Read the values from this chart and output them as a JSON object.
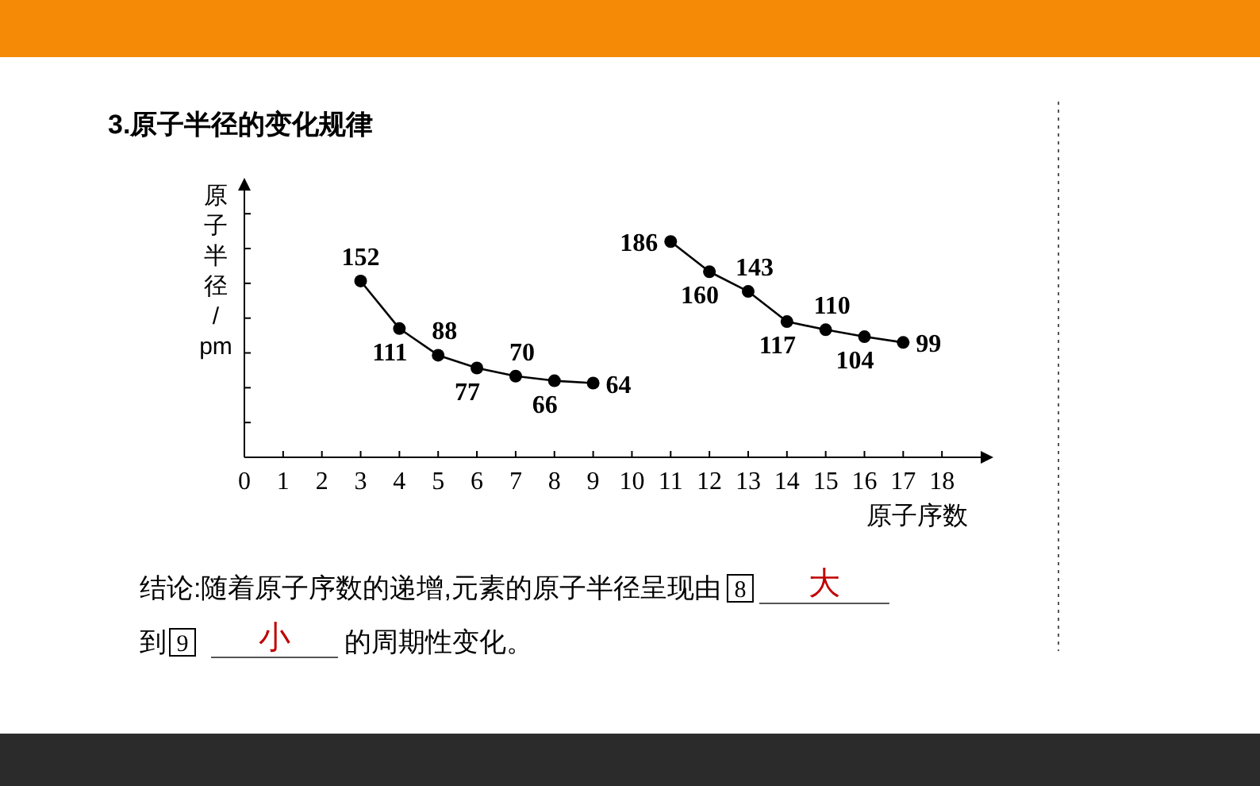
{
  "chart_data": {
    "type": "line",
    "title": "3.原子半径的变化规律",
    "ylabel": "原子半径/pm",
    "xlabel": "原子序数",
    "xlim": [
      0,
      19
    ],
    "xticks": [
      0,
      1,
      2,
      3,
      4,
      5,
      6,
      7,
      8,
      9,
      10,
      11,
      12,
      13,
      14,
      15,
      16,
      17,
      18
    ],
    "ylim": [
      0,
      230
    ],
    "yticks": [
      {
        "value": 30,
        "label": null
      },
      {
        "value": 60,
        "label": null
      },
      {
        "value": 90,
        "label": null
      },
      {
        "value": 120,
        "label": null
      },
      {
        "value": 150,
        "label": null
      },
      {
        "value": 180,
        "label": null
      },
      {
        "value": 210,
        "label": null
      }
    ],
    "series": [
      {
        "color": "#000000",
        "x": [
          3,
          4,
          5,
          6,
          7,
          8,
          9
        ],
        "values": [
          152,
          111,
          88,
          77,
          70,
          66,
          64
        ]
      },
      {
        "color": "#000000",
        "x": [
          11,
          12,
          13,
          14,
          15,
          16,
          17
        ],
        "values": [
          186,
          160,
          143,
          117,
          110,
          104,
          99
        ]
      }
    ],
    "marker": "circle",
    "line_style": "solid",
    "data_labels": true,
    "grid": false,
    "annotations": [
      "结论:随着原子序数的递增,元素的原子半径呈现由",
      "8",
      "大",
      "到",
      "9",
      "小",
      "的周期性变化。"
    ]
  }
}
